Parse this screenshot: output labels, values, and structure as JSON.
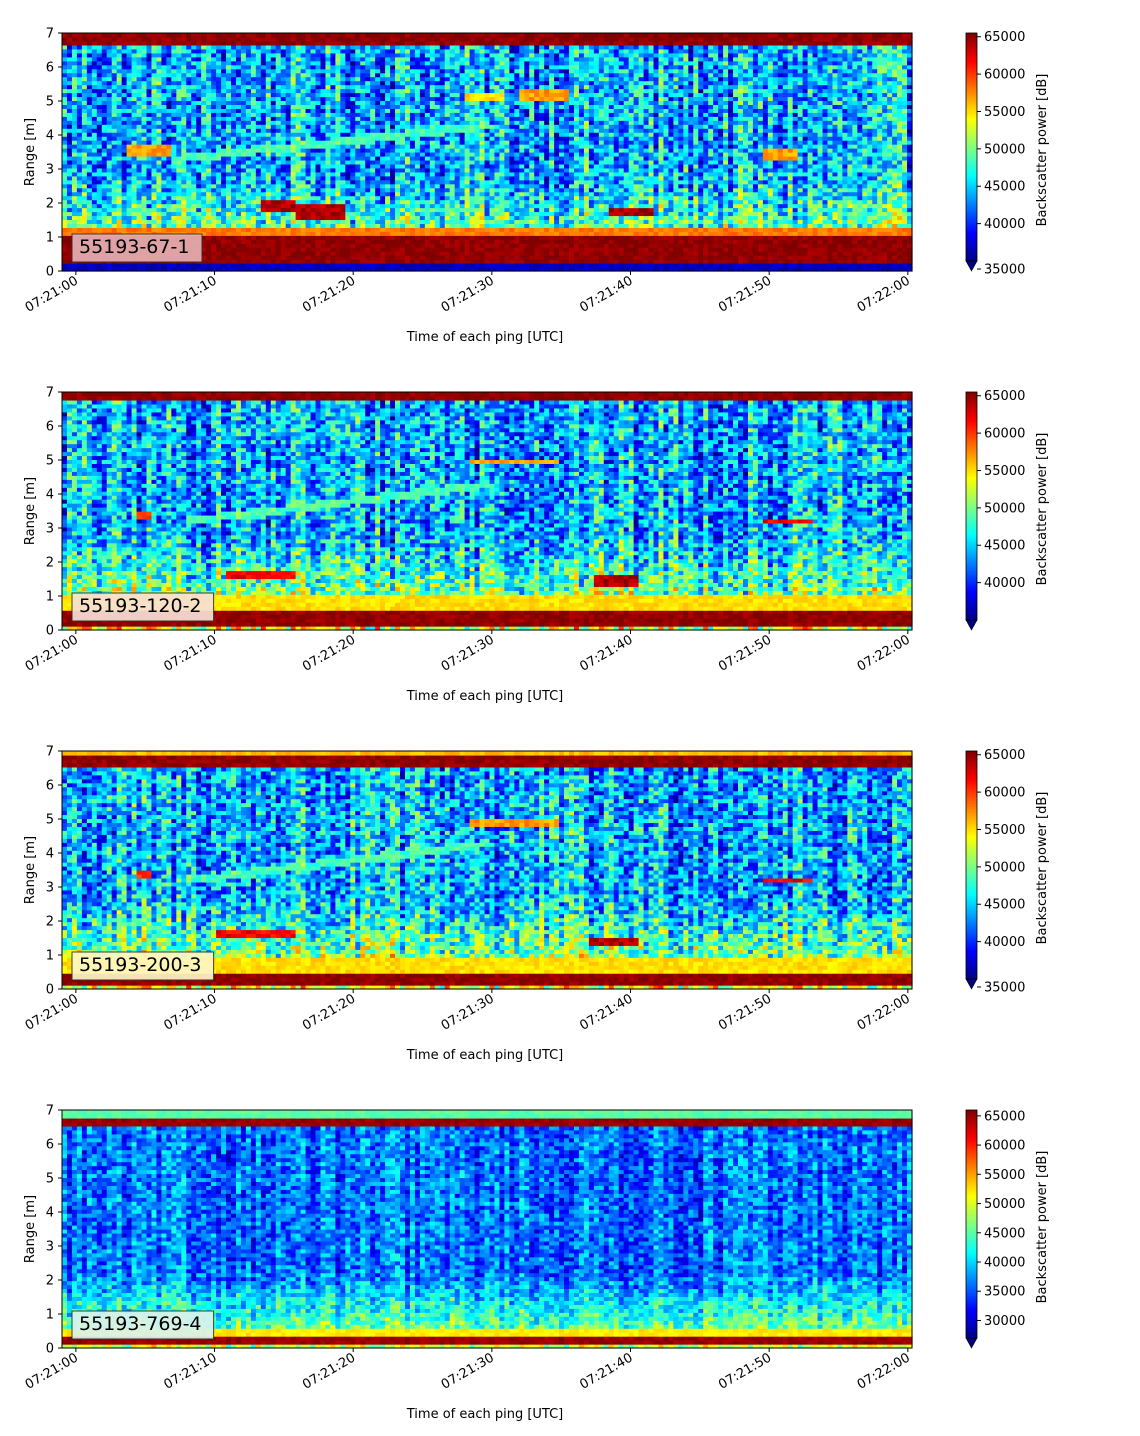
{
  "chart_data": [
    {
      "type": "heatmap",
      "label": "55193-67-1",
      "xlabel": "Time of each ping [UTC]",
      "ylabel": "Range [m]",
      "xticks": [
        "07:21:00",
        "07:21:10",
        "07:21:20",
        "07:21:30",
        "07:21:40",
        "07:21:50",
        "07:22:00"
      ],
      "xlim_seconds": [
        -1,
        60.3
      ],
      "yticks": [
        0,
        1,
        2,
        3,
        4,
        5,
        6,
        7
      ],
      "ylim": [
        0,
        7
      ],
      "colorbar_label": "Backscatter power [dB]",
      "colorbar_ticks": [
        35000,
        40000,
        45000,
        50000,
        55000,
        60000,
        65000
      ],
      "clim": [
        35000,
        65500
      ],
      "colormap": "jet",
      "colorbar_extend": "min",
      "features": [
        {
          "kind": "band",
          "y0": 0.0,
          "y1": 0.25,
          "value": 37000
        },
        {
          "kind": "band",
          "y0": 0.25,
          "y1": 1.0,
          "value": 65000
        },
        {
          "kind": "band",
          "y0": 1.0,
          "y1": 1.25,
          "value": 58000
        },
        {
          "kind": "band",
          "y0": 6.6,
          "y1": 7.0,
          "value": 65000
        },
        {
          "kind": "blob",
          "t0": 3.5,
          "t1": 7,
          "y": 3.6,
          "h": 0.35,
          "value": 57000
        },
        {
          "kind": "blob",
          "t0": 13.5,
          "t1": 16,
          "y": 1.95,
          "h": 0.4,
          "value": 64000
        },
        {
          "kind": "blob",
          "t0": 16,
          "t1": 19.5,
          "y": 1.75,
          "h": 0.4,
          "value": 64000
        },
        {
          "kind": "blob",
          "t0": 38.5,
          "t1": 41.5,
          "y": 1.75,
          "h": 0.35,
          "value": 64000
        },
        {
          "kind": "blob",
          "t0": 28,
          "t1": 31,
          "y": 5.15,
          "h": 0.3,
          "value": 55000
        },
        {
          "kind": "blob",
          "t0": 32,
          "t1": 35.5,
          "y": 5.2,
          "h": 0.3,
          "value": 57000
        },
        {
          "kind": "blob",
          "t0": 49.5,
          "t1": 52,
          "y": 3.45,
          "h": 0.3,
          "value": 57000
        },
        {
          "kind": "trail",
          "t0": 7,
          "t1": 30,
          "y0": 3.3,
          "y1": 4.3,
          "value": 47000
        }
      ]
    },
    {
      "type": "heatmap",
      "label": "55193-120-2",
      "xlabel": "Time of each ping [UTC]",
      "ylabel": "Range [m]",
      "xticks": [
        "07:21:00",
        "07:21:10",
        "07:21:20",
        "07:21:30",
        "07:21:40",
        "07:21:50",
        "07:22:00"
      ],
      "xlim_seconds": [
        -1,
        60.3
      ],
      "yticks": [
        0,
        1,
        2,
        3,
        4,
        5,
        6,
        7
      ],
      "ylim": [
        0,
        7
      ],
      "colorbar_label": "Backscatter power [dB]",
      "colorbar_ticks": [
        40000,
        45000,
        50000,
        55000,
        60000,
        65000
      ],
      "clim": [
        35000,
        65500
      ],
      "colormap": "jet",
      "colorbar_extend": "min",
      "features": [
        {
          "kind": "band",
          "y0": 0.1,
          "y1": 0.55,
          "value": 65000
        },
        {
          "kind": "band",
          "y0": 0.55,
          "y1": 1.0,
          "value": 55000
        },
        {
          "kind": "band",
          "y0": 6.75,
          "y1": 7.0,
          "value": 65000
        },
        {
          "kind": "blob",
          "t0": 4.5,
          "t1": 5.5,
          "y": 3.35,
          "h": 0.25,
          "value": 60000
        },
        {
          "kind": "blob",
          "t0": 11,
          "t1": 16,
          "y": 1.65,
          "h": 0.25,
          "value": 62000
        },
        {
          "kind": "blob",
          "t0": 37.5,
          "t1": 40.5,
          "y": 1.45,
          "h": 0.25,
          "value": 64000
        },
        {
          "kind": "blob",
          "t0": 28.5,
          "t1": 35,
          "y": 4.95,
          "h": 0.2,
          "value": 57000
        },
        {
          "kind": "blob",
          "t0": 49.5,
          "t1": 53,
          "y": 3.2,
          "h": 0.2,
          "value": 62000
        },
        {
          "kind": "trail",
          "t0": 8,
          "t1": 30,
          "y0": 3.2,
          "y1": 4.3,
          "value": 47000
        }
      ]
    },
    {
      "type": "heatmap",
      "label": "55193-200-3",
      "xlabel": "Time of each ping [UTC]",
      "ylabel": "Range [m]",
      "xticks": [
        "07:21:00",
        "07:21:10",
        "07:21:20",
        "07:21:30",
        "07:21:40",
        "07:21:50",
        "07:22:00"
      ],
      "xlim_seconds": [
        -1,
        60.3
      ],
      "yticks": [
        0,
        1,
        2,
        3,
        4,
        5,
        6,
        7
      ],
      "ylim": [
        0,
        7
      ],
      "colorbar_label": "Backscatter power [dB]",
      "colorbar_ticks": [
        35000,
        40000,
        45000,
        50000,
        55000,
        60000,
        65000
      ],
      "clim": [
        35000,
        65500
      ],
      "colormap": "jet",
      "colorbar_extend": "min",
      "features": [
        {
          "kind": "band",
          "y0": 0.15,
          "y1": 0.5,
          "value": 65000
        },
        {
          "kind": "band",
          "y0": 0.5,
          "y1": 0.9,
          "value": 55000
        },
        {
          "kind": "band",
          "y0": 6.55,
          "y1": 6.85,
          "value": 65000
        },
        {
          "kind": "band",
          "y0": 6.85,
          "y1": 7.0,
          "value": 56000
        },
        {
          "kind": "blob",
          "t0": 4.5,
          "t1": 5.5,
          "y": 3.4,
          "h": 0.2,
          "value": 60000
        },
        {
          "kind": "blob",
          "t0": 10,
          "t1": 16,
          "y": 1.65,
          "h": 0.2,
          "value": 62000
        },
        {
          "kind": "blob",
          "t0": 37,
          "t1": 40.5,
          "y": 1.4,
          "h": 0.25,
          "value": 64000
        },
        {
          "kind": "blob",
          "t0": 28.5,
          "t1": 35,
          "y": 4.9,
          "h": 0.2,
          "value": 57000
        },
        {
          "kind": "blob",
          "t0": 49.5,
          "t1": 53,
          "y": 3.2,
          "h": 0.2,
          "value": 62000
        },
        {
          "kind": "trail",
          "t0": 8,
          "t1": 30,
          "y0": 3.2,
          "y1": 4.3,
          "value": 47000
        }
      ]
    },
    {
      "type": "heatmap",
      "label": "55193-769-4",
      "xlabel": "Time of each ping [UTC]",
      "ylabel": "Range [m]",
      "xticks": [
        "07:21:00",
        "07:21:10",
        "07:21:20",
        "07:21:30",
        "07:21:40",
        "07:21:50",
        "07:22:00"
      ],
      "xlim_seconds": [
        -1,
        60.3
      ],
      "yticks": [
        0,
        1,
        2,
        3,
        4,
        5,
        6,
        7
      ],
      "ylim": [
        0,
        7
      ],
      "colorbar_label": "Backscatter power [dB]",
      "colorbar_ticks": [
        30000,
        35000,
        40000,
        45000,
        50000,
        55000,
        60000,
        65000
      ],
      "clim": [
        27000,
        66000
      ],
      "colormap": "jet",
      "colorbar_extend": "min",
      "features": [
        {
          "kind": "band",
          "y0": 0.15,
          "y1": 0.3,
          "value": 65000
        },
        {
          "kind": "band",
          "y0": 0.3,
          "y1": 0.6,
          "value": 52000
        },
        {
          "kind": "band",
          "y0": 6.5,
          "y1": 6.75,
          "value": 65000
        },
        {
          "kind": "band",
          "y0": 6.75,
          "y1": 7.0,
          "value": 45000
        }
      ]
    }
  ]
}
